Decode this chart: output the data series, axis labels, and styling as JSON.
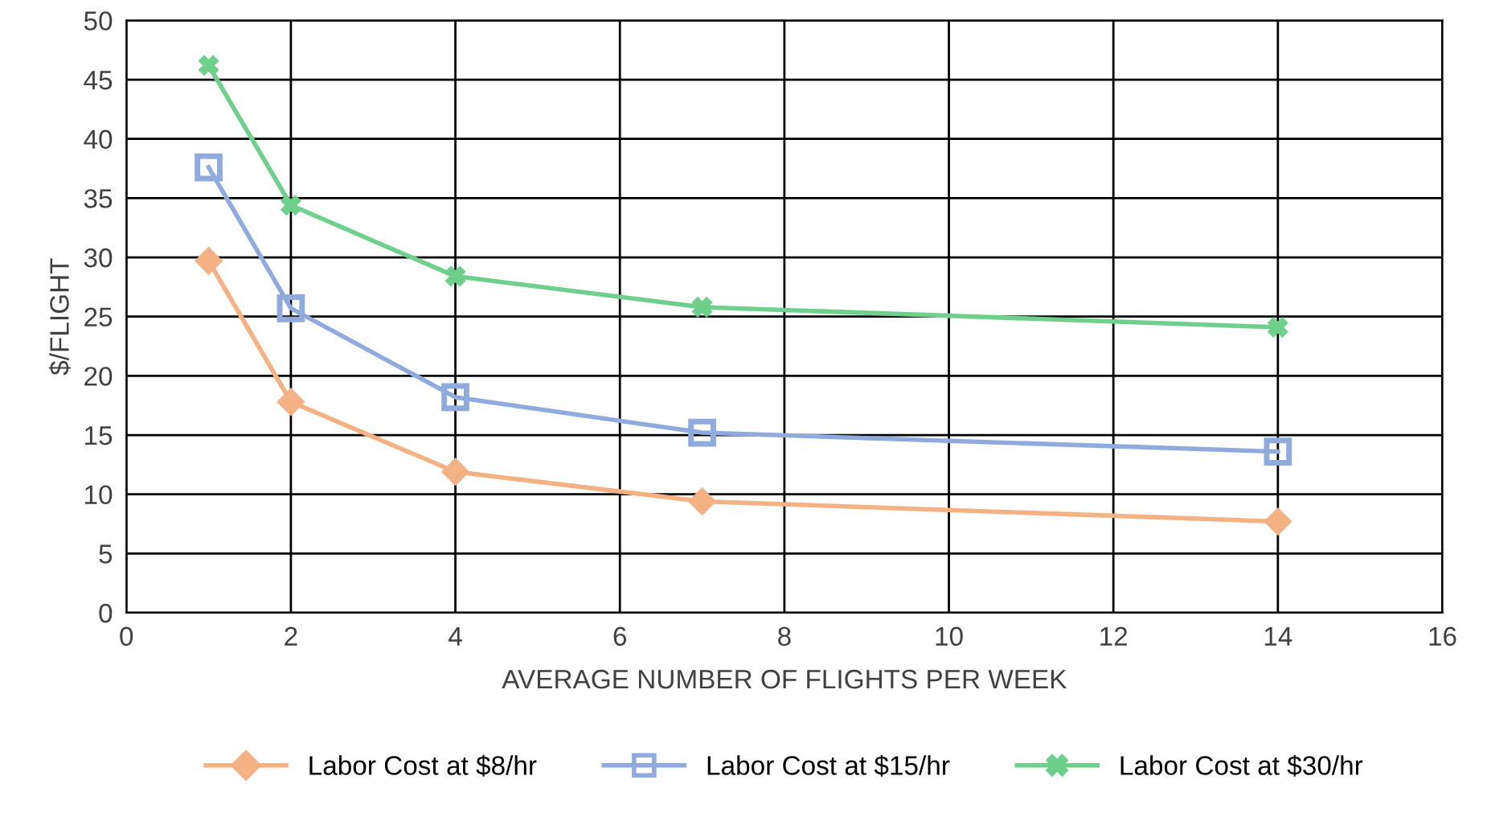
{
  "chart_data": {
    "type": "line",
    "xlabel": "AVERAGE NUMBER OF FLIGHTS PER WEEK",
    "ylabel": "$/FLIGHT",
    "x": [
      1,
      2,
      4,
      7,
      14
    ],
    "series": [
      {
        "name": "Labor Cost at $8/hr",
        "color": "#f4b183",
        "marker": "diamond",
        "values": [
          29.7,
          17.8,
          11.9,
          9.4,
          7.7
        ]
      },
      {
        "name": "Labor Cost at $15/hr",
        "color": "#8faadc",
        "marker": "square",
        "values": [
          37.6,
          25.7,
          18.2,
          15.2,
          13.6
        ]
      },
      {
        "name": "Labor Cost at $30/hr",
        "color": "#6fd08c",
        "marker": "cross",
        "values": [
          46.2,
          34.4,
          28.4,
          25.8,
          24.1
        ]
      }
    ],
    "xlim": [
      0,
      16
    ],
    "xticks": [
      0,
      2,
      4,
      6,
      8,
      10,
      12,
      14,
      16
    ],
    "ylim": [
      0,
      50
    ],
    "yticks": [
      0,
      5,
      10,
      15,
      20,
      25,
      30,
      35,
      40,
      45,
      50
    ],
    "grid": true,
    "legend": "bottom",
    "line_style": "solid"
  }
}
